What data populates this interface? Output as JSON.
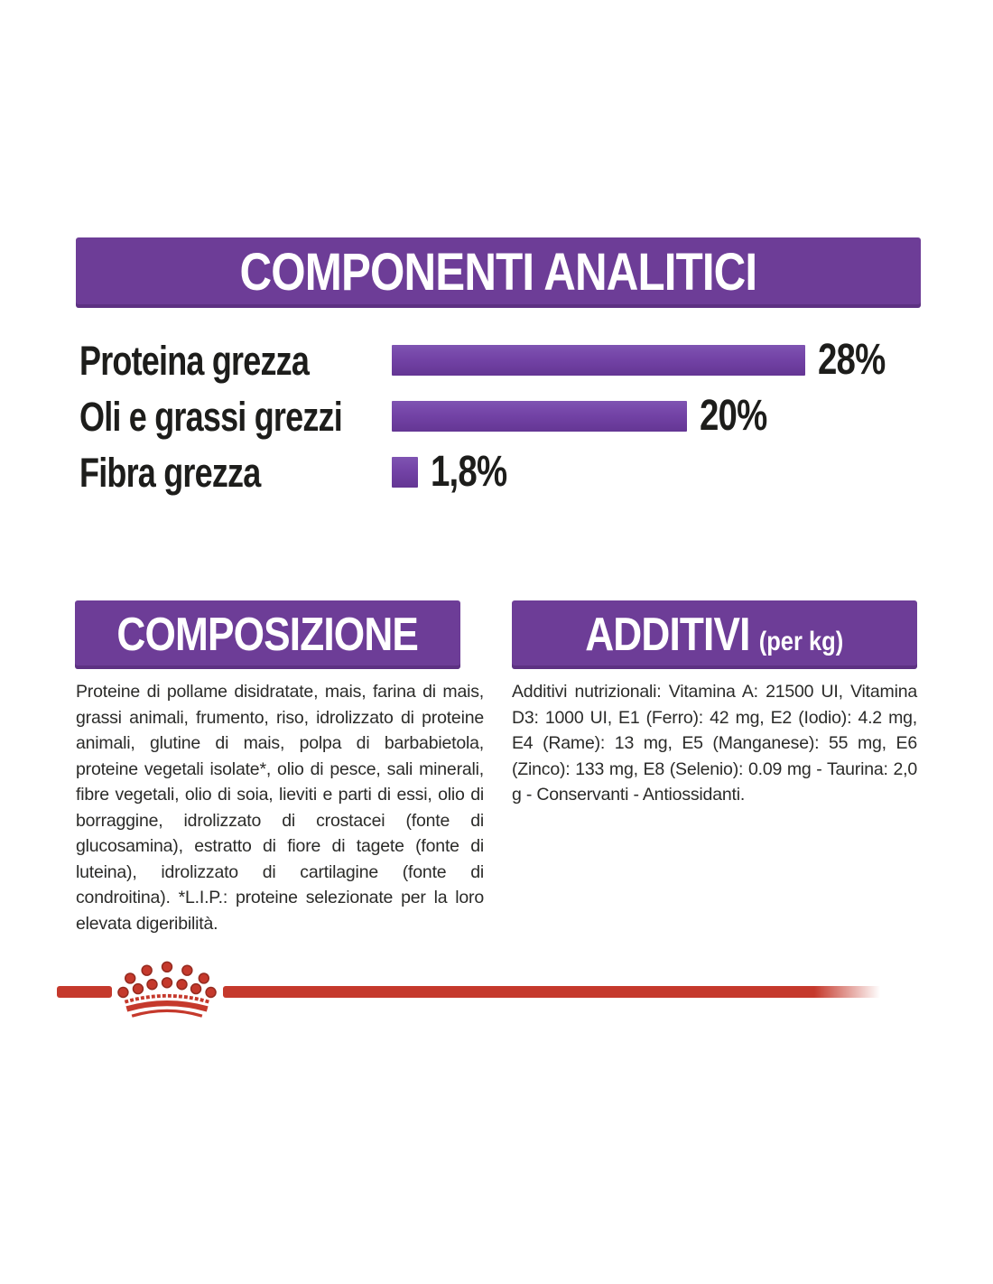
{
  "colors": {
    "banner_purple": "#6d3d97",
    "bar_purple": "#7343a6",
    "brand_red": "#c5392c",
    "heading_text": "#ffffff",
    "label_text": "#1d1d1b"
  },
  "analytical": {
    "title": "COMPONENTI ANALITICI"
  },
  "chart_data": {
    "type": "bar",
    "orientation": "horizontal",
    "title": "COMPONENTI ANALITICI",
    "categories": [
      "Proteina grezza",
      "Oli e grassi grezzi",
      "Fibra grezza"
    ],
    "values": [
      28,
      20,
      1.8
    ],
    "value_labels": [
      "28%",
      "20%",
      "1,8%"
    ],
    "unit": "%",
    "xlim": [
      0,
      28
    ],
    "bar_color": "#7343a6",
    "grid": false,
    "legend": false
  },
  "composition": {
    "title": "COMPOSIZIONE",
    "body": "Proteine di pollame disidratate, mais, farina di mais, grassi animali, frumento, riso, idrolizzato di proteine animali, glutine di mais, polpa di barbabietola, proteine vegetali isolate*, olio di pesce, sali minerali, fibre vegetali, olio di soia, lieviti e parti di essi, olio di borraggine, idrolizzato di crostacei (fonte di glucosamina), estratto di fiore di tagete (fonte di luteina), idrolizzato di cartilagine (fonte di condroitina). *L.I.P.: proteine selezionate per la loro elevata digeribilità."
  },
  "additives": {
    "title": "ADDITIVI",
    "title_suffix": "(per kg)",
    "body": "Additivi nutrizionali: Vitamina A: 21500 UI, Vitamina D3: 1000 UI, E1 (Ferro): 42 mg, E2 (Iodio): 4.2 mg, E4 (Rame): 13 mg, E5 (Manganese): 55 mg, E6 (Zinco): 133 mg, E8 (Selenio): 0.09 mg - Taurina: 2,0 g - Conservanti - Antiossidanti."
  },
  "footer": {
    "brand_mark": "royal-canin-crown"
  }
}
